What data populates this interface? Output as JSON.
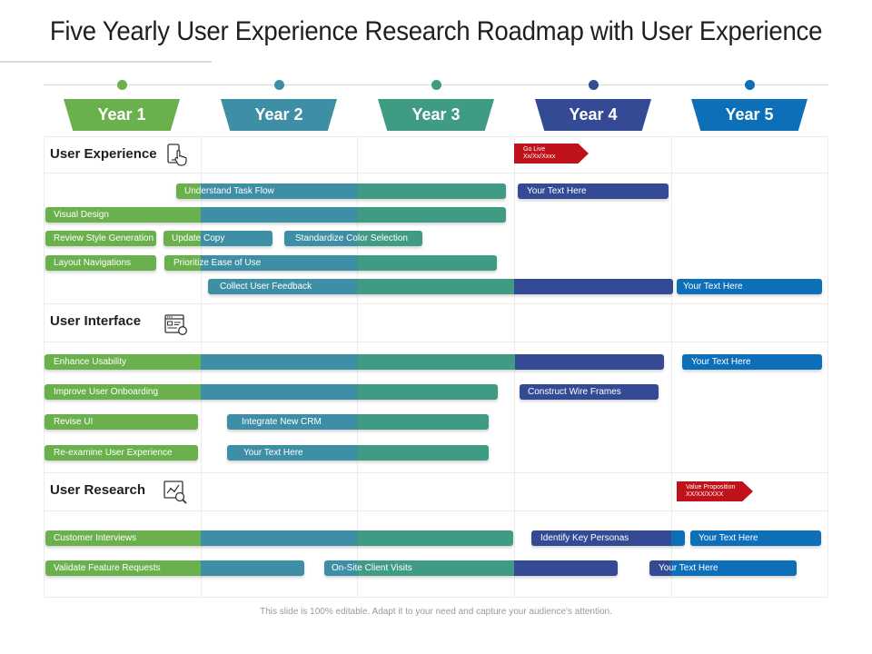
{
  "title": "Five Yearly User Experience Research Roadmap with User Experience",
  "colors": {
    "green": "#6ab04c",
    "teal": "#3e8fa6",
    "seagreen": "#3f9b83",
    "navy": "#354a95",
    "blue": "#0d6fb8",
    "red": "#c0121b"
  },
  "years": [
    {
      "label": "Year 1",
      "color": "#6ab04c"
    },
    {
      "label": "Year 2",
      "color": "#3e8fa6"
    },
    {
      "label": "Year 3",
      "color": "#3f9b83"
    },
    {
      "label": "Year  4",
      "color": "#354a95"
    },
    {
      "label": "Year 5",
      "color": "#0d6fb8"
    }
  ],
  "sections": {
    "ux": {
      "title": "User Experience",
      "icon": "touch-screen-icon"
    },
    "ui": {
      "title": "User Interface",
      "icon": "browser-window-icon"
    },
    "ur": {
      "title": "User Research",
      "icon": "analytics-magnifier-icon"
    }
  },
  "flags": {
    "go_live": {
      "line1": "Go Live",
      "line2": "Xx/Xx/Xxxx"
    },
    "value_prop": {
      "line1": "Value Proposition",
      "line2": "XX/XX/XXXX"
    }
  },
  "tasks": {
    "understand_task_flow": "Understand Task Flow",
    "ux_your_text_1": "Your Text Here",
    "visual_design": "Visual Design",
    "review_style_generation": "Review Style Generation",
    "update_copy": "Update Copy",
    "standardize_color_selection": "Standardize Color Selection",
    "layout_navigations": "Layout Navigations",
    "prioritize_ease_of_use": "Prioritize Ease of Use",
    "collect_user_feedback": "Collect User Feedback",
    "ux_your_text_2": "Your Text Here",
    "enhance_usability": "Enhance Usability",
    "ui_your_text_1": "Your Text Here",
    "improve_user_onboarding": "Improve User Onboarding",
    "construct_wire_frames": "Construct Wire Frames",
    "revise_ui": "Revise UI",
    "integrate_new_crm": "Integrate New CRM",
    "reexamine_user_experience": "Re-examine User Experience",
    "ui_your_text_2": "Your Text Here",
    "customer_interviews": "Customer Interviews",
    "identify_key_personas": "Identify Key Personas",
    "ur_your_text_1": "Your Text Here",
    "validate_feature_requests": "Validate Feature Requests",
    "onsite_client_visits": "On-Site Client Visits",
    "ur_your_text_2": "Your Text Here"
  },
  "footer": "This slide is 100% editable. Adapt it to your need and capture your audience's attention."
}
